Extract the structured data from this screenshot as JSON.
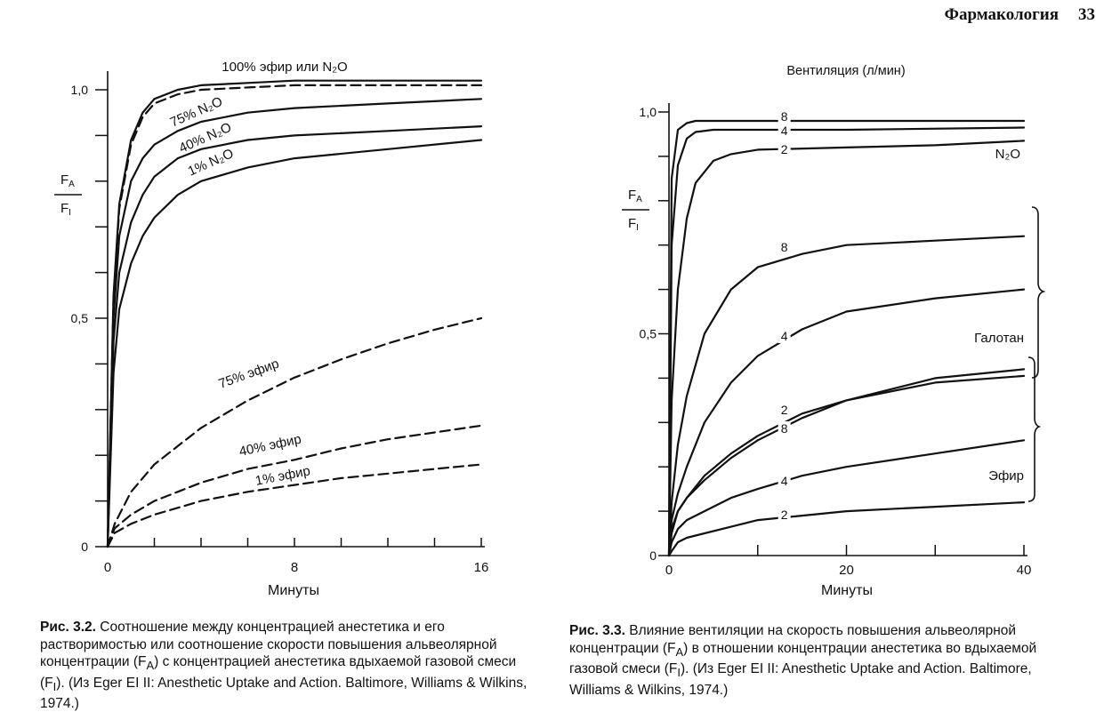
{
  "header": {
    "section": "Фармакология",
    "page_number": "33"
  },
  "chart_data": [
    {
      "type": "line",
      "xlabel": "Минуты",
      "ylabel_numerator": "F",
      "ylabel_numerator_sub": "A",
      "ylabel_denominator": "F",
      "ylabel_denominator_sub": "I",
      "xlim": [
        0,
        16
      ],
      "ylim": [
        0,
        1.0
      ],
      "x_ticks": [
        0,
        8,
        16
      ],
      "x_tick_labels": [
        "0",
        "8",
        "16"
      ],
      "y_tick_labels": [
        {
          "value": 0,
          "label": "0"
        },
        {
          "value": 0.5,
          "label": "0,5"
        },
        {
          "value": 1.0,
          "label": "1,0"
        }
      ],
      "series": [
        {
          "name": "100% эфир или N₂O",
          "style": "solid",
          "x": [
            0,
            0.25,
            0.5,
            1,
            1.5,
            2,
            3,
            4,
            6,
            8,
            12,
            16
          ],
          "y": [
            0,
            0.55,
            0.75,
            0.89,
            0.95,
            0.98,
            1.0,
            1.01,
            1.015,
            1.02,
            1.02,
            1.02
          ]
        },
        {
          "name": "",
          "style": "dashed",
          "x": [
            0,
            0.25,
            0.5,
            1,
            1.5,
            2,
            3,
            4,
            6,
            8,
            12,
            16
          ],
          "y": [
            0,
            0.54,
            0.74,
            0.88,
            0.94,
            0.97,
            0.99,
            1.0,
            1.005,
            1.01,
            1.01,
            1.01
          ]
        },
        {
          "name": "75% N₂O",
          "style": "solid",
          "x": [
            0,
            0.25,
            0.5,
            1,
            1.5,
            2,
            3,
            4,
            6,
            8,
            12,
            16
          ],
          "y": [
            0,
            0.5,
            0.68,
            0.8,
            0.85,
            0.88,
            0.91,
            0.93,
            0.95,
            0.96,
            0.97,
            0.98
          ]
        },
        {
          "name": "40% N₂O",
          "style": "solid",
          "x": [
            0,
            0.25,
            0.5,
            1,
            1.5,
            2,
            3,
            4,
            6,
            8,
            12,
            16
          ],
          "y": [
            0,
            0.45,
            0.6,
            0.71,
            0.77,
            0.81,
            0.85,
            0.87,
            0.89,
            0.9,
            0.91,
            0.92
          ]
        },
        {
          "name": "1% N₂O",
          "style": "solid",
          "x": [
            0,
            0.25,
            0.5,
            1,
            1.5,
            2,
            3,
            4,
            6,
            8,
            12,
            16
          ],
          "y": [
            0,
            0.38,
            0.52,
            0.62,
            0.68,
            0.72,
            0.77,
            0.8,
            0.83,
            0.85,
            0.87,
            0.89
          ]
        },
        {
          "name": "75% эфир",
          "style": "dashed",
          "x": [
            0,
            0.3,
            1,
            2,
            3,
            4,
            6,
            8,
            10,
            12,
            14,
            16
          ],
          "y": [
            0,
            0.05,
            0.12,
            0.18,
            0.22,
            0.26,
            0.32,
            0.37,
            0.41,
            0.445,
            0.475,
            0.5
          ]
        },
        {
          "name": "40% эфир",
          "style": "dashed",
          "x": [
            0,
            0.3,
            1,
            2,
            3,
            4,
            6,
            8,
            10,
            12,
            14,
            16
          ],
          "y": [
            0,
            0.04,
            0.07,
            0.1,
            0.12,
            0.14,
            0.17,
            0.19,
            0.215,
            0.235,
            0.25,
            0.265
          ]
        },
        {
          "name": "1% эфир",
          "style": "dashed",
          "x": [
            0,
            0.3,
            1,
            2,
            3,
            4,
            6,
            8,
            10,
            12,
            14,
            16
          ],
          "y": [
            0,
            0.03,
            0.05,
            0.07,
            0.085,
            0.1,
            0.12,
            0.135,
            0.15,
            0.16,
            0.17,
            0.18
          ]
        }
      ]
    },
    {
      "type": "line",
      "title": "Вентиляция (л/мин)",
      "xlabel": "Минуты",
      "ylabel_numerator": "F",
      "ylabel_numerator_sub": "A",
      "ylabel_denominator": "F",
      "ylabel_denominator_sub": "I",
      "xlim": [
        0,
        40
      ],
      "ylim": [
        0,
        1.0
      ],
      "x_ticks": [
        0,
        10,
        20,
        30,
        40
      ],
      "x_tick_labels": [
        {
          "value": 0,
          "label": "0"
        },
        {
          "value": 20,
          "label": "20"
        },
        {
          "value": 40,
          "label": "40"
        }
      ],
      "y_tick_labels": [
        {
          "value": 0,
          "label": "0"
        },
        {
          "value": 0.5,
          "label": "0,5"
        },
        {
          "value": 1.0,
          "label": "1,0"
        }
      ],
      "group_labels": [
        "N₂O",
        "Галотан",
        "Эфир"
      ],
      "series": [
        {
          "name": "8",
          "group": "N₂O",
          "x": [
            0,
            0.3,
            1,
            2,
            3,
            5,
            10,
            20,
            40
          ],
          "y": [
            0,
            0.85,
            0.96,
            0.975,
            0.98,
            0.98,
            0.98,
            0.98,
            0.98
          ]
        },
        {
          "name": "4",
          "group": "N₂O",
          "x": [
            0,
            0.3,
            1,
            2,
            3,
            5,
            10,
            20,
            40
          ],
          "y": [
            0,
            0.7,
            0.88,
            0.94,
            0.955,
            0.96,
            0.96,
            0.96,
            0.965
          ]
        },
        {
          "name": "2",
          "group": "N₂O",
          "x": [
            0,
            0.3,
            1,
            2,
            3,
            5,
            7,
            10,
            20,
            30,
            40
          ],
          "y": [
            0,
            0.35,
            0.6,
            0.76,
            0.84,
            0.89,
            0.905,
            0.915,
            0.92,
            0.925,
            0.935
          ]
        },
        {
          "name": "8",
          "group": "Галотан",
          "x": [
            0,
            0.3,
            1,
            2,
            4,
            7,
            10,
            15,
            20,
            30,
            40
          ],
          "y": [
            0,
            0.12,
            0.25,
            0.36,
            0.5,
            0.6,
            0.65,
            0.68,
            0.7,
            0.71,
            0.72
          ]
        },
        {
          "name": "4",
          "group": "Галотан",
          "x": [
            0,
            0.3,
            1,
            2,
            4,
            7,
            10,
            15,
            20,
            30,
            40
          ],
          "y": [
            0,
            0.08,
            0.14,
            0.2,
            0.3,
            0.39,
            0.45,
            0.51,
            0.55,
            0.58,
            0.6
          ]
        },
        {
          "name": "2",
          "group": "Галотан",
          "x": [
            0,
            0.3,
            1,
            2,
            4,
            7,
            10,
            15,
            20,
            30,
            40
          ],
          "y": [
            0,
            0.06,
            0.1,
            0.13,
            0.18,
            0.23,
            0.27,
            0.32,
            0.35,
            0.39,
            0.405
          ]
        },
        {
          "name": "8",
          "group": "Эфир",
          "x": [
            0,
            0.3,
            1,
            2,
            4,
            7,
            10,
            15,
            20,
            30,
            40
          ],
          "y": [
            0,
            0.05,
            0.1,
            0.13,
            0.17,
            0.22,
            0.26,
            0.31,
            0.35,
            0.4,
            0.42
          ]
        },
        {
          "name": "4",
          "group": "Эфир",
          "x": [
            0,
            0.3,
            1,
            2,
            4,
            7,
            10,
            15,
            20,
            30,
            40
          ],
          "y": [
            0,
            0.03,
            0.06,
            0.08,
            0.1,
            0.13,
            0.15,
            0.18,
            0.2,
            0.23,
            0.26
          ]
        },
        {
          "name": "2",
          "group": "Эфир",
          "x": [
            0,
            0.3,
            1,
            2,
            4,
            7,
            10,
            15,
            20,
            30,
            40
          ],
          "y": [
            0,
            0.01,
            0.03,
            0.04,
            0.05,
            0.065,
            0.08,
            0.09,
            0.1,
            0.11,
            0.12
          ]
        }
      ]
    }
  ],
  "captions": [
    {
      "label": "Рис. 3.2.",
      "text": "Соотношение между концентрацией анестетика и его растворимостью или соотношение скорости повышения альвеолярной концентрации (F",
      "sub1": "A",
      "text2": ") с концентрацией анестетика вдыхаемой газовой смеси (F",
      "sub2": "I",
      "text3": "). (Из Eger EI II: Anesthetic Uptake and Action. Baltimore, Williams & Wilkins, 1974.)"
    },
    {
      "label": "Рис. 3.3.",
      "text": "Влияние вентиляции на скорость повышения альвеолярной концентрации (F",
      "sub1": "A",
      "text2": ") в отношении концентрации анестетика во вдыхаемой газовой смеси (F",
      "sub2": "I",
      "text3": "). (Из Eger EI II: Anesthetic Uptake and Action. Baltimore, Williams & Wilkins, 1974.)"
    }
  ]
}
